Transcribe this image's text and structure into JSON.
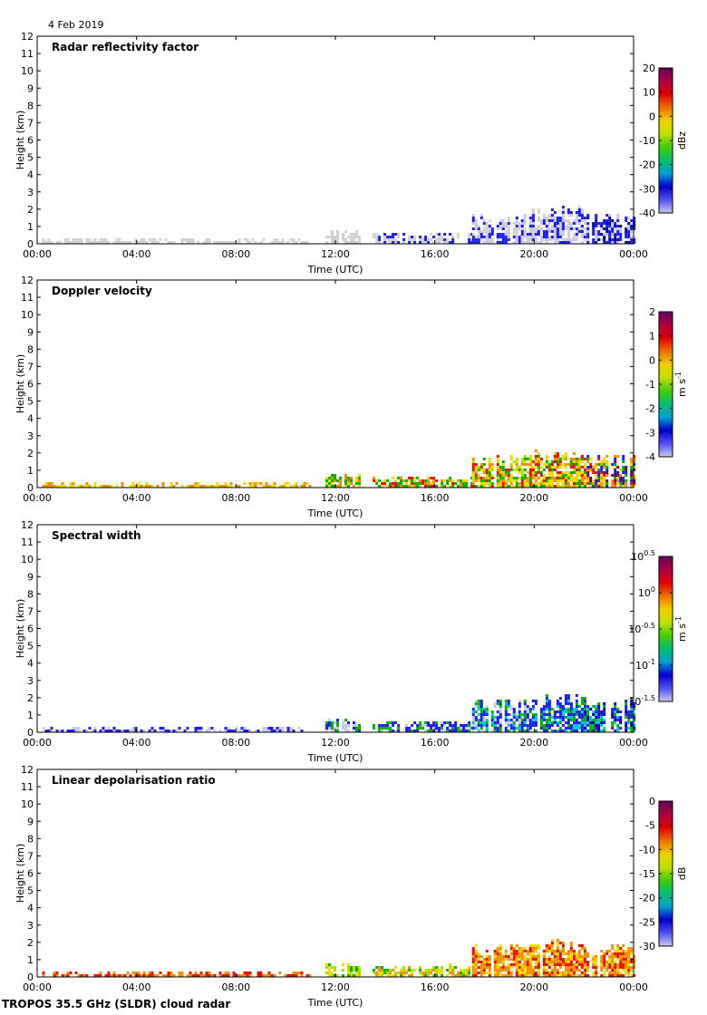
{
  "date": "4 Feb 2019",
  "footer": "TROPOS 35.5 GHz (SLDR) cloud radar",
  "palette": {
    "white": "#ffffff",
    "lavender": "#c8c8f0",
    "blue": "#1e1ef0",
    "blue_dark": "#0000a0",
    "cyan": "#00c8d8",
    "green": "#00b400",
    "yellow_green": "#a8e000",
    "yellow": "#f0dc00",
    "orange": "#f09000",
    "red": "#e81000",
    "crimson": "#b80040",
    "purple": "#6c0064",
    "grey": "#d2d2d2",
    "border": "#000000"
  },
  "chart_data": [
    {
      "type": "heatmap",
      "title": "Radar reflectivity factor",
      "xlabel": "Time (UTC)",
      "ylabel": "Height (km)",
      "x_ticks": [
        "00:00",
        "04:00",
        "08:00",
        "12:00",
        "16:00",
        "20:00",
        "00:00"
      ],
      "x_range_hours": [
        0,
        24
      ],
      "y_ticks": [
        "0",
        "1",
        "2",
        "3",
        "4",
        "5",
        "6",
        "7",
        "8",
        "9",
        "10",
        "11",
        "12"
      ],
      "y_range_km": [
        0,
        12
      ],
      "colorbar": {
        "unit": "dBz",
        "ticks": [
          "20",
          "10",
          "0",
          "-10",
          "-20",
          "-30",
          "-40"
        ],
        "range": [
          -40,
          20
        ]
      },
      "echo": [
        {
          "from_h": 0.2,
          "to_h": 11.0,
          "top_km": 0.35,
          "colors": [
            "grey"
          ]
        },
        {
          "from_h": 11.6,
          "to_h": 13.0,
          "top_km": 0.8,
          "colors": [
            "grey"
          ]
        },
        {
          "from_h": 13.5,
          "to_h": 17.5,
          "top_km": 0.7,
          "colors": [
            "grey",
            "grey",
            "blue"
          ]
        },
        {
          "from_h": 17.5,
          "to_h": 19.8,
          "top_km": 1.7,
          "colors": [
            "grey",
            "blue",
            "lavender"
          ]
        },
        {
          "from_h": 19.8,
          "to_h": 22.0,
          "top_km": 2.1,
          "colors": [
            "grey",
            "lavender",
            "blue"
          ]
        },
        {
          "from_h": 22.0,
          "to_h": 24.0,
          "top_km": 1.7,
          "colors": [
            "blue",
            "blue",
            "blue_dark",
            "lavender"
          ]
        }
      ]
    },
    {
      "type": "heatmap",
      "title": "Doppler velocity",
      "xlabel": "Time (UTC)",
      "ylabel": "Height (km)",
      "x_ticks": [
        "00:00",
        "04:00",
        "08:00",
        "12:00",
        "16:00",
        "20:00",
        "00:00"
      ],
      "x_range_hours": [
        0,
        24
      ],
      "y_ticks": [
        "0",
        "1",
        "2",
        "3",
        "4",
        "5",
        "6",
        "7",
        "8",
        "9",
        "10",
        "11",
        "12"
      ],
      "y_range_km": [
        0,
        12
      ],
      "colorbar": {
        "unit": "m s-1",
        "ticks": [
          "2",
          "1",
          "0",
          "-1",
          "-2",
          "-3",
          "-4"
        ],
        "range": [
          -4,
          2
        ]
      },
      "echo": [
        {
          "from_h": 0.2,
          "to_h": 11.0,
          "top_km": 0.35,
          "colors": [
            "yellow",
            "orange"
          ]
        },
        {
          "from_h": 11.6,
          "to_h": 13.0,
          "top_km": 0.8,
          "colors": [
            "yellow",
            "green",
            "orange"
          ]
        },
        {
          "from_h": 13.5,
          "to_h": 17.5,
          "top_km": 0.7,
          "colors": [
            "orange",
            "red",
            "yellow",
            "green"
          ]
        },
        {
          "from_h": 17.5,
          "to_h": 19.8,
          "top_km": 1.8,
          "colors": [
            "yellow",
            "green",
            "orange",
            "red",
            "yellow_green"
          ]
        },
        {
          "from_h": 19.8,
          "to_h": 22.0,
          "top_km": 2.1,
          "colors": [
            "yellow",
            "yellow",
            "orange",
            "green",
            "red"
          ]
        },
        {
          "from_h": 22.0,
          "to_h": 24.0,
          "top_km": 1.8,
          "colors": [
            "yellow",
            "orange",
            "red",
            "green",
            "blue",
            "purple"
          ]
        }
      ]
    },
    {
      "type": "heatmap",
      "title": "Spectral width",
      "xlabel": "Time (UTC)",
      "ylabel": "Height (km)",
      "x_ticks": [
        "00:00",
        "04:00",
        "08:00",
        "12:00",
        "16:00",
        "20:00",
        "00:00"
      ],
      "x_range_hours": [
        0,
        24
      ],
      "y_ticks": [
        "0",
        "1",
        "2",
        "3",
        "4",
        "5",
        "6",
        "7",
        "8",
        "9",
        "10",
        "11",
        "12"
      ],
      "y_range_km": [
        0,
        12
      ],
      "colorbar": {
        "unit": "m s-1",
        "log_scale": true,
        "ticks": [
          "0.5",
          "0",
          "-0.5",
          "-1",
          "-1.5"
        ],
        "tick_base": "10",
        "range": [
          -1.5,
          0.5
        ]
      },
      "echo": [
        {
          "from_h": 0.2,
          "to_h": 11.0,
          "top_km": 0.35,
          "colors": [
            "lavender",
            "blue"
          ]
        },
        {
          "from_h": 11.6,
          "to_h": 13.0,
          "top_km": 0.8,
          "colors": [
            "blue",
            "lavender",
            "green"
          ]
        },
        {
          "from_h": 13.5,
          "to_h": 17.5,
          "top_km": 0.7,
          "colors": [
            "blue",
            "blue",
            "green",
            "lavender"
          ]
        },
        {
          "from_h": 17.5,
          "to_h": 19.8,
          "top_km": 1.8,
          "colors": [
            "blue",
            "blue",
            "cyan",
            "green",
            "lavender"
          ]
        },
        {
          "from_h": 19.8,
          "to_h": 22.0,
          "top_km": 2.1,
          "colors": [
            "blue",
            "blue",
            "cyan",
            "green"
          ]
        },
        {
          "from_h": 22.0,
          "to_h": 24.0,
          "top_km": 1.8,
          "colors": [
            "blue",
            "cyan",
            "green",
            "blue_dark"
          ]
        }
      ]
    },
    {
      "type": "heatmap",
      "title": "Linear depolarisation ratio",
      "xlabel": "Time (UTC)",
      "ylabel": "Height (km)",
      "x_ticks": [
        "00:00",
        "04:00",
        "08:00",
        "12:00",
        "16:00",
        "20:00",
        "00:00"
      ],
      "x_range_hours": [
        0,
        24
      ],
      "y_ticks": [
        "0",
        "1",
        "2",
        "3",
        "4",
        "5",
        "6",
        "7",
        "8",
        "9",
        "10",
        "11",
        "12"
      ],
      "y_range_km": [
        0,
        12
      ],
      "colorbar": {
        "unit": "dB",
        "ticks": [
          "0",
          "-5",
          "-10",
          "-15",
          "-20",
          "-25",
          "-30"
        ],
        "range": [
          -30,
          0
        ]
      },
      "echo": [
        {
          "from_h": 0.2,
          "to_h": 11.0,
          "top_km": 0.35,
          "colors": [
            "orange",
            "red"
          ]
        },
        {
          "from_h": 11.6,
          "to_h": 13.0,
          "top_km": 0.8,
          "colors": [
            "yellow_green",
            "yellow",
            "green"
          ]
        },
        {
          "from_h": 13.5,
          "to_h": 17.5,
          "top_km": 0.7,
          "colors": [
            "yellow_green",
            "green",
            "orange",
            "yellow"
          ]
        },
        {
          "from_h": 17.5,
          "to_h": 19.8,
          "top_km": 1.8,
          "colors": [
            "orange",
            "orange",
            "red",
            "yellow"
          ]
        },
        {
          "from_h": 19.8,
          "to_h": 22.0,
          "top_km": 2.1,
          "colors": [
            "orange",
            "orange",
            "yellow",
            "red"
          ]
        },
        {
          "from_h": 22.0,
          "to_h": 24.0,
          "top_km": 1.8,
          "colors": [
            "orange",
            "red",
            "orange",
            "yellow"
          ]
        }
      ]
    }
  ]
}
